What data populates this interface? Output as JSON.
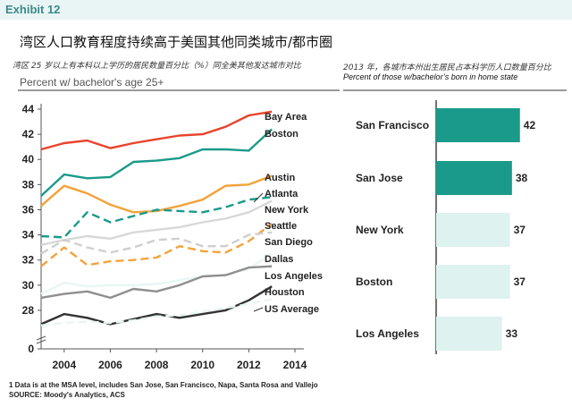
{
  "header": {
    "exhibit": "Exhibit 12",
    "title": "湾区人口教育程度持续高于美国其他同类城市/都市圈",
    "left_subtitle": "湾区 25 岁以上有本科以上学历的居民数量百分比（%）同全美其他发达城市对比",
    "right_subtitle_cn": "2013 年，各城市本州出生居民占本科学历人口数量百分比",
    "right_subtitle_en": "Percent of those w/bachelor’s born in home state",
    "line_ylabel": "Percent w/ bachelor's age 25+"
  },
  "footnotes": {
    "note1": "1 Data is at the MSA level, includes San Jose, San Francisco, Napa, Santa Rosa and Vallejo",
    "source": "SOURCE: Moody's Analytics, ACS"
  },
  "chart_data": [
    {
      "type": "line",
      "title": "",
      "ylabel": "Percent w/ bachelor's age 25+",
      "xlabel": "",
      "x": [
        2003,
        2004,
        2005,
        2006,
        2007,
        2008,
        2009,
        2010,
        2011,
        2012,
        2013
      ],
      "xticks": [
        2004,
        2006,
        2008,
        2010,
        2012,
        2014
      ],
      "xlim": [
        2003,
        2014
      ],
      "yticks": [
        0,
        28,
        30,
        32,
        34,
        36,
        38,
        40,
        42,
        44
      ],
      "ylim": [
        26.5,
        44
      ],
      "axis_break": true,
      "series": [
        {
          "name": "Bay Area",
          "color": "#e8432a",
          "dash": "solid",
          "values": [
            40.8,
            41.3,
            41.5,
            40.9,
            41.3,
            41.6,
            41.9,
            42.0,
            42.6,
            43.5,
            43.8
          ]
        },
        {
          "name": "Boston",
          "color": "#1a9a8a",
          "dash": "solid",
          "values": [
            37.1,
            38.8,
            38.5,
            38.6,
            39.8,
            39.9,
            40.1,
            40.8,
            40.8,
            40.7,
            42.4
          ]
        },
        {
          "name": "Austin",
          "color": "#f2a33a",
          "dash": "solid",
          "values": [
            36.3,
            37.9,
            37.3,
            36.4,
            35.8,
            35.9,
            36.3,
            36.8,
            37.9,
            38.0,
            38.7
          ]
        },
        {
          "name": "Atlanta",
          "color": "#1a9a8a",
          "dash": "dashed",
          "values": [
            33.9,
            33.8,
            35.8,
            35.0,
            35.5,
            36.0,
            35.9,
            35.8,
            36.2,
            36.8,
            37.0
          ]
        },
        {
          "name": "New York",
          "color": "#d8d8d8",
          "dash": "solid",
          "values": [
            33.2,
            33.6,
            33.9,
            33.7,
            34.2,
            34.4,
            34.6,
            35.0,
            35.3,
            35.8,
            36.7
          ]
        },
        {
          "name": "Seattle",
          "color": "#f2a33a",
          "dash": "dashed",
          "values": [
            31.5,
            33.0,
            31.6,
            31.9,
            32.0,
            32.2,
            33.1,
            32.7,
            32.6,
            33.5,
            34.9
          ]
        },
        {
          "name": "San Diego",
          "color": "#cfcfcf",
          "dash": "dashed",
          "values": [
            32.5,
            33.6,
            33.0,
            32.6,
            33.0,
            33.6,
            33.7,
            33.1,
            33.1,
            34.0,
            34.2
          ]
        },
        {
          "name": "Dallas",
          "color": "#e8f6f4",
          "dash": "solid",
          "values": [
            29.3,
            30.2,
            29.9,
            30.0,
            30.0,
            30.1,
            30.4,
            30.7,
            30.8,
            31.3,
            32.5
          ]
        },
        {
          "name": "Los Angeles",
          "color": "#8f8f8f",
          "dash": "solid",
          "values": [
            29.0,
            29.3,
            29.5,
            29.0,
            29.7,
            29.5,
            30.0,
            30.7,
            30.8,
            31.4,
            31.5
          ]
        },
        {
          "name": "Houston",
          "color": "#333333",
          "dash": "solid",
          "values": [
            26.9,
            27.7,
            27.4,
            26.9,
            27.3,
            27.7,
            27.4,
            27.7,
            28.0,
            28.8,
            29.9
          ]
        },
        {
          "name": "US Average",
          "color": "#e8f6f4",
          "dash": "dashed",
          "values": [
            26.8,
            27.0,
            27.1,
            27.0,
            27.2,
            27.5,
            27.6,
            27.9,
            28.2,
            28.5,
            28.9
          ]
        }
      ]
    },
    {
      "type": "bar",
      "orientation": "horizontal",
      "title": "Percent of those w/bachelor’s born in home state",
      "categories": [
        "San Francisco",
        "San Jose",
        "New York",
        "Boston",
        "Los Angeles"
      ],
      "values": [
        42,
        38,
        37,
        37,
        33
      ],
      "colors": [
        "#1a9a8a",
        "#1a9a8a",
        "#def2f0",
        "#def2f0",
        "#def2f0"
      ],
      "xlim": [
        0,
        43
      ]
    }
  ]
}
